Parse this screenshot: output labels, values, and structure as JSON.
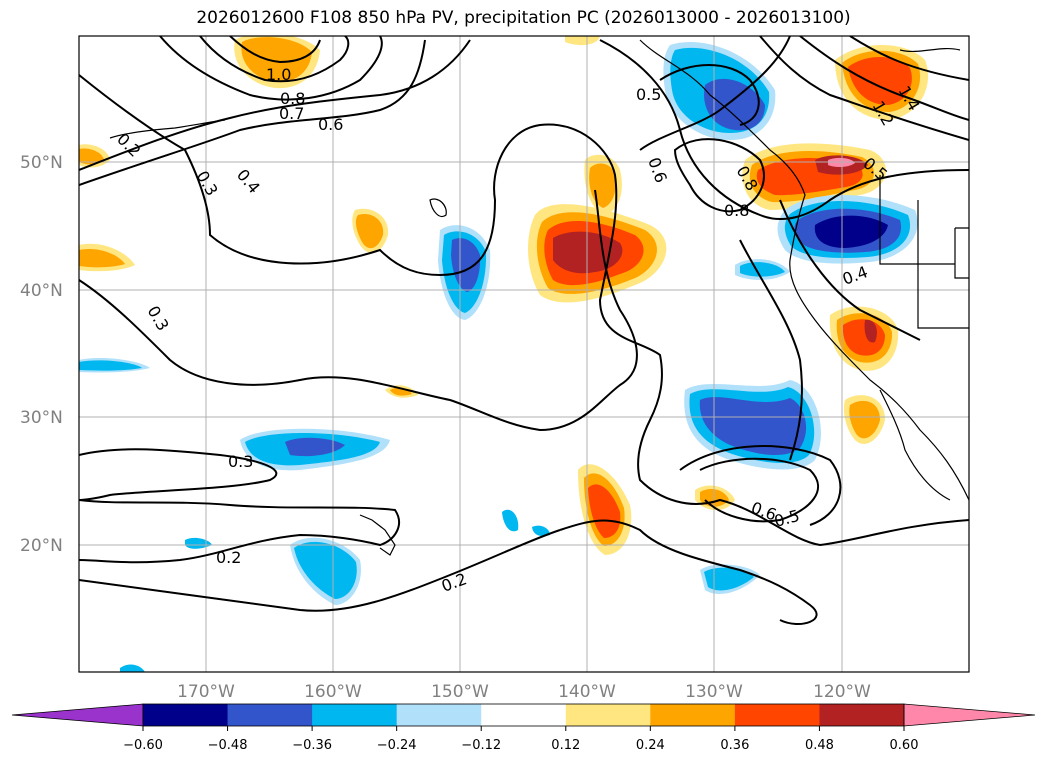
{
  "title": "2026012600 F108 850 hPa PV, precipitation PC (2026013000 - 2026013100)",
  "axes": {
    "lat_labels": [
      "50°N",
      "40°N",
      "30°N",
      "20°N"
    ],
    "lon_labels": [
      "170°W",
      "160°W",
      "150°W",
      "140°W",
      "130°W",
      "120°W"
    ]
  },
  "colorbar": {
    "levels": [
      "−0.60",
      "−0.48",
      "−0.36",
      "−0.24",
      "−0.12",
      "0.12",
      "0.24",
      "0.36",
      "0.48",
      "0.60"
    ],
    "colors": [
      "#9933cc",
      "#00008b",
      "#3355cc",
      "#00b7f0",
      "#b0e0fa",
      "#ffffff",
      "#ffe680",
      "#ffa500",
      "#ff4500",
      "#b22222",
      "#ff88aa"
    ]
  },
  "contour_labels": [
    "1.0",
    "0.8",
    "0.7",
    "0.6",
    "0.2",
    "0.3",
    "0.4",
    "0.5",
    "0.6",
    "0.8",
    "0.5",
    "0.4",
    "0.3",
    "0.3",
    "0.2",
    "0.2",
    "0.6",
    "0.5",
    "1.2",
    "1.4",
    "0.8"
  ]
}
